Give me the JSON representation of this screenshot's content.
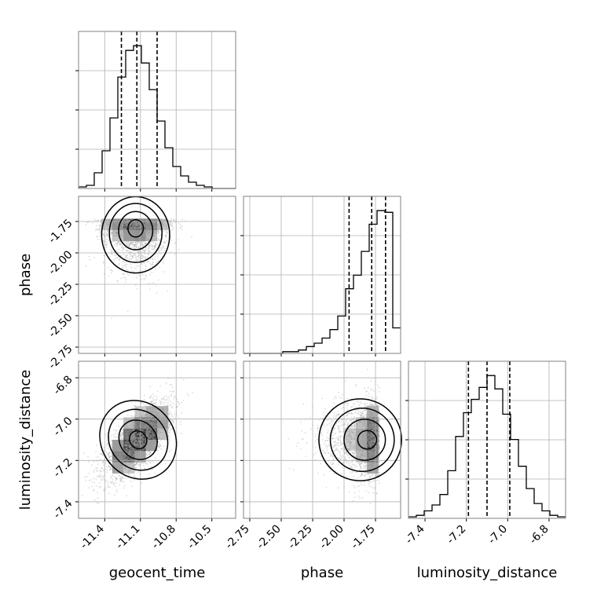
{
  "chart_data": {
    "type": "corner",
    "parameters": [
      "geocent_time",
      "phase",
      "luminosity_distance"
    ],
    "axis_labels": {
      "x": [
        "geocent_time",
        "phase",
        "luminosity_distance"
      ],
      "y_rows": [
        "",
        "phase",
        "luminosity_distance"
      ]
    },
    "ranges": {
      "geocent_time": [
        -11.62,
        -10.3
      ],
      "phase": [
        -2.8,
        -1.55
      ],
      "luminosity_distance": [
        -7.48,
        -6.72
      ]
    },
    "ticks": {
      "geocent_time": [
        "-11.4",
        "-11.1",
        "-10.8",
        "-10.5"
      ],
      "phase": [
        "-2.75",
        "-2.50",
        "-2.25",
        "-2.00",
        "-1.75"
      ],
      "luminosity_distance": [
        "-7.4",
        "-7.2",
        "-7.0",
        "-6.8"
      ]
    },
    "y_ticks_phase": [
      "-1.75",
      "-2.00",
      "-2.25",
      "-2.50",
      "-2.75"
    ],
    "y_ticks_luminosity_distance": [
      "-6.8",
      "-7.0",
      "-7.2",
      "-7.4"
    ],
    "quantiles": {
      "geocent_time": [
        -11.26,
        -11.13,
        -10.96
      ],
      "phase": [
        -1.96,
        -1.78,
        -1.67
      ],
      "luminosity_distance": [
        -7.19,
        -7.1,
        -6.99
      ]
    },
    "histograms": {
      "geocent_time": {
        "bin_edges": [
          -11.62,
          -11.554,
          -11.488,
          -11.422,
          -11.356,
          -11.29,
          -11.224,
          -11.158,
          -11.092,
          -11.026,
          -10.96,
          -10.894,
          -10.828,
          -10.762,
          -10.696,
          -10.63,
          -10.564,
          -10.498,
          -10.432,
          -10.366,
          -10.3
        ],
        "counts": [
          1,
          2,
          10,
          24,
          45,
          71,
          88,
          91,
          80,
          63,
          43,
          26,
          14,
          8,
          4,
          2,
          1,
          0,
          0,
          0
        ]
      },
      "phase": {
        "bin_edges": [
          -2.8,
          -2.7375,
          -2.675,
          -2.6125,
          -2.55,
          -2.4875,
          -2.425,
          -2.3625,
          -2.3,
          -2.2375,
          -2.175,
          -2.1125,
          -2.05,
          -1.9875,
          -1.925,
          -1.8625,
          -1.8,
          -1.7375,
          -1.675,
          -1.6125,
          -1.55
        ],
        "counts": [
          0,
          0,
          0,
          0,
          0,
          1,
          1,
          2,
          4,
          6,
          9,
          14,
          22,
          38,
          46,
          60,
          76,
          84,
          83,
          15
        ]
      },
      "luminosity_distance": {
        "bin_edges": [
          -7.48,
          -7.442,
          -7.404,
          -7.366,
          -7.328,
          -7.29,
          -7.252,
          -7.214,
          -7.176,
          -7.138,
          -7.1,
          -7.062,
          -7.024,
          -6.986,
          -6.948,
          -6.91,
          -6.872,
          -6.834,
          -6.796,
          -6.758,
          -6.72
        ],
        "counts": [
          1,
          2,
          5,
          9,
          16,
          32,
          55,
          71,
          80,
          88,
          96,
          87,
          70,
          53,
          35,
          20,
          10,
          5,
          2,
          1
        ]
      }
    },
    "joint": {
      "phase_vs_geocent_time": {
        "x_mean": -11.14,
        "x_sd": 0.13,
        "y_mean": -1.79,
        "y_sd": 0.12,
        "correlation": -0.05,
        "y_skew": "tail toward lower phase"
      },
      "luminosity_distance_vs_geocent_time": {
        "x_mean": -11.12,
        "x_sd": 0.14,
        "y_mean": -7.1,
        "y_sd": 0.09,
        "correlation": 0.7
      },
      "luminosity_distance_vs_phase": {
        "x_mean": -1.8,
        "x_sd": 0.13,
        "y_mean": -7.1,
        "y_sd": 0.09,
        "correlation": 0.0,
        "x_skew": "tail toward lower phase"
      }
    },
    "grid": true,
    "colors": {
      "line": "#000000",
      "grid": "#b0b0b0",
      "frame": "#808080"
    }
  }
}
